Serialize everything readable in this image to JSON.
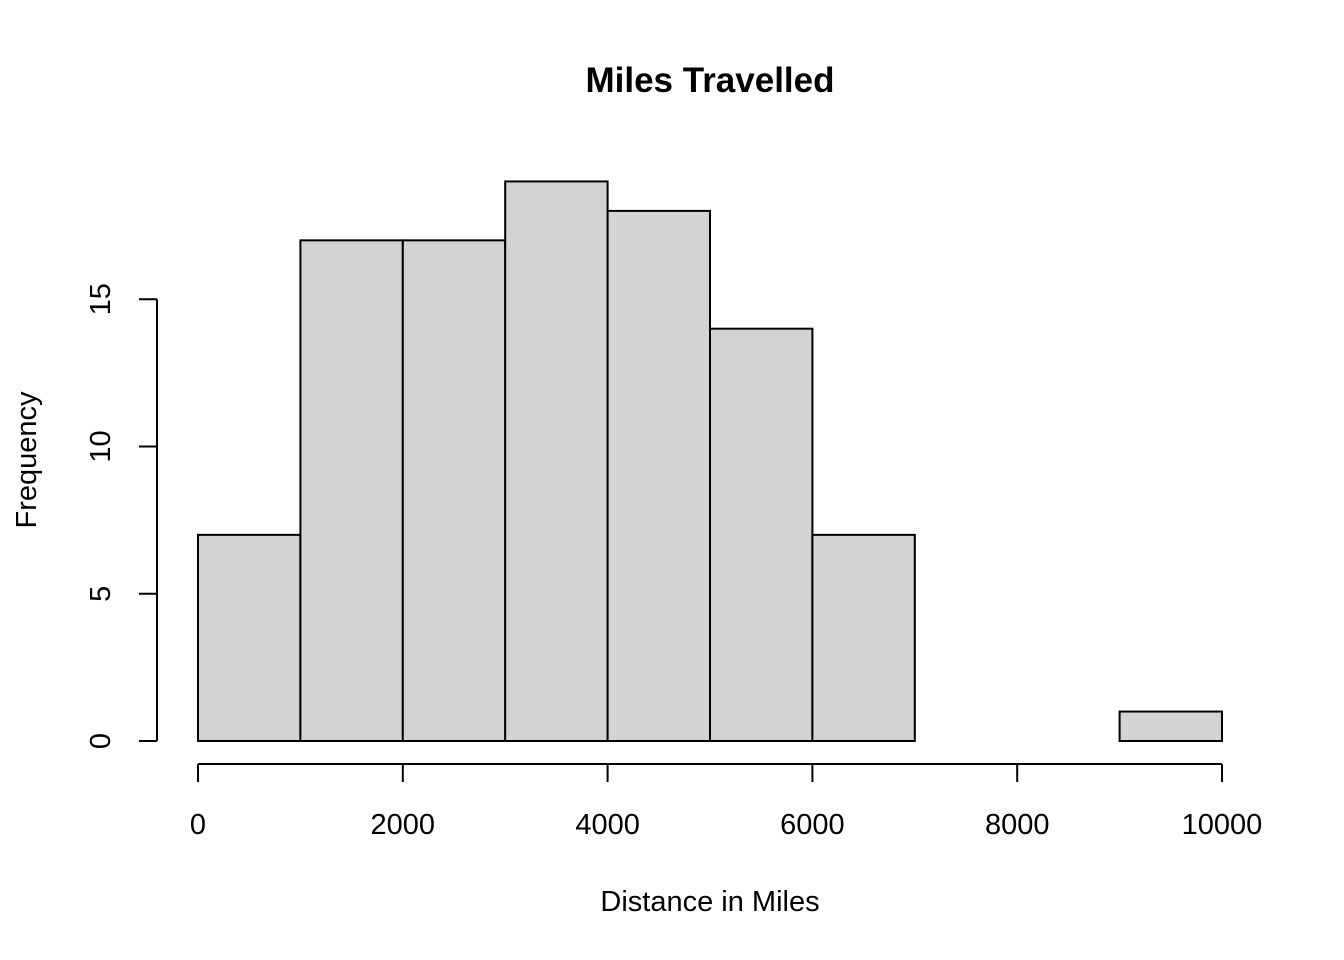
{
  "chart_data": {
    "type": "bar",
    "title": "Miles Travelled",
    "xlabel": "Distance in Miles",
    "ylabel": "Frequency",
    "bins": [
      {
        "from": 0,
        "to": 1000,
        "count": 7
      },
      {
        "from": 1000,
        "to": 2000,
        "count": 17
      },
      {
        "from": 2000,
        "to": 3000,
        "count": 17
      },
      {
        "from": 3000,
        "to": 4000,
        "count": 19
      },
      {
        "from": 4000,
        "to": 5000,
        "count": 18
      },
      {
        "from": 5000,
        "to": 6000,
        "count": 14
      },
      {
        "from": 6000,
        "to": 7000,
        "count": 7
      },
      {
        "from": 7000,
        "to": 8000,
        "count": 0
      },
      {
        "from": 8000,
        "to": 9000,
        "count": 0
      },
      {
        "from": 9000,
        "to": 10000,
        "count": 1
      }
    ],
    "xlim": [
      0,
      10000
    ],
    "ylim": [
      0,
      19
    ],
    "x_ticks": [
      0,
      2000,
      4000,
      6000,
      8000,
      10000
    ],
    "y_ticks": [
      0,
      5,
      10,
      15
    ],
    "grid": false,
    "bar_color": "#d3d3d3",
    "edge_color": "#000000"
  }
}
